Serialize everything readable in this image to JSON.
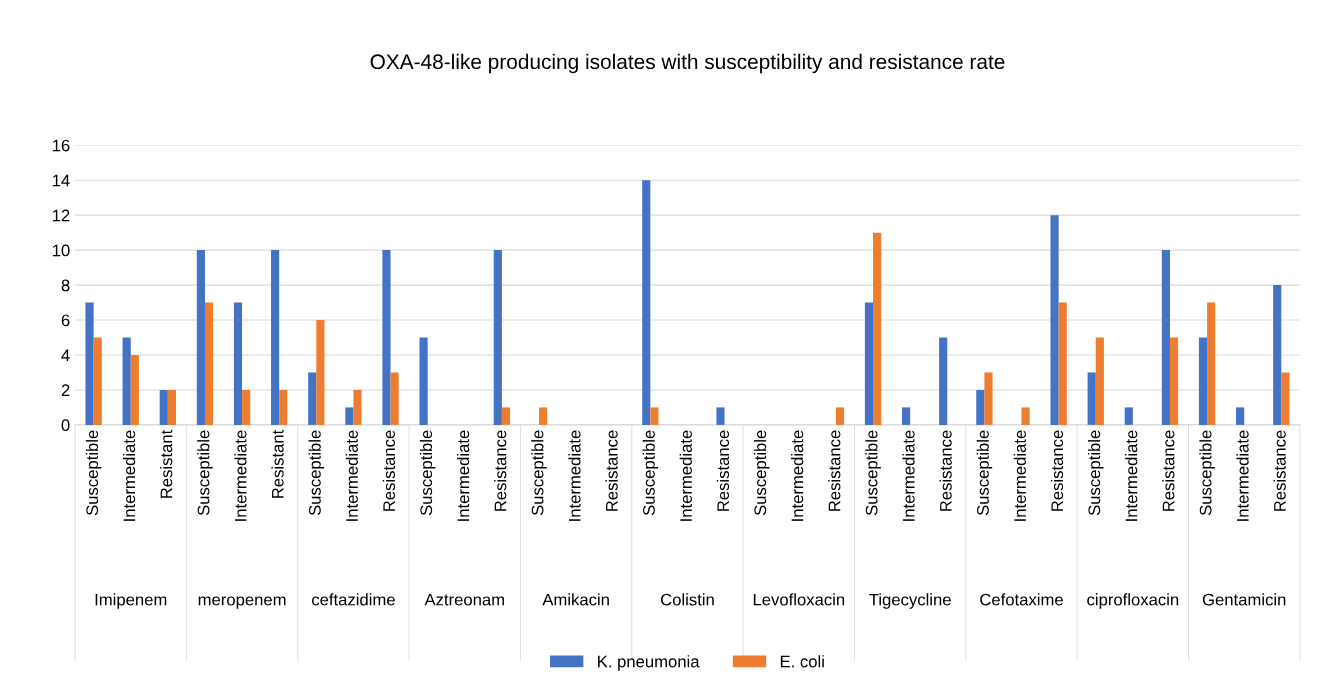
{
  "chart_data": {
    "type": "bar",
    "title": "OXA-48-like producing isolates with susceptibility and resistance rate",
    "categories": [
      "Susceptible",
      "Intermediate",
      "Resistant",
      "Susceptible",
      "Intermediate",
      "Resistant",
      "Susceptible",
      "Intermediate",
      "Resistance",
      "Susceptible",
      "Intermediate",
      "Resistance",
      "Susceptible",
      "Intermediate",
      "Resistance",
      "Susceptible",
      "Intermediate",
      "Resistance",
      "Susceptible",
      "Intermediate",
      "Resistance",
      "Susceptible",
      "Intermediate",
      "Resistance",
      "Susceptible",
      "Intermediate",
      "Resistance",
      "Susceptible",
      "Intermediate",
      "Resistance",
      "Susceptible",
      "Intermediate",
      "Resistance"
    ],
    "series": [
      {
        "name": "K. pneumonia",
        "color": "#4472c4",
        "values": [
          7,
          5,
          2,
          10,
          7,
          10,
          3,
          1,
          10,
          5,
          0,
          10,
          0,
          0,
          0,
          14,
          0,
          1,
          0,
          0,
          0,
          7,
          1,
          5,
          2,
          0,
          12,
          3,
          1,
          10,
          5,
          1,
          8
        ]
      },
      {
        "name": "E. coli",
        "color": "#ed7d31",
        "values": [
          5,
          4,
          2,
          7,
          2,
          2,
          6,
          2,
          3,
          0,
          0,
          1,
          1,
          0,
          0,
          1,
          0,
          0,
          0,
          0,
          1,
          11,
          0,
          0,
          3,
          1,
          7,
          5,
          0,
          5,
          7,
          0,
          3
        ]
      }
    ],
    "annotations": [
      "Imipenem",
      "meropenem",
      "ceftazidime",
      "Aztreonam",
      "Amikacin",
      "Colistin",
      "Levofloxacin",
      "Tigecycline",
      "Cefotaxime",
      "ciprofloxacin",
      "Gentamicin"
    ],
    "ylim": [
      0,
      16
    ],
    "yticks": [
      0,
      2,
      4,
      6,
      8,
      10,
      12,
      14,
      16
    ],
    "grid": "y",
    "legend": "bottom"
  }
}
